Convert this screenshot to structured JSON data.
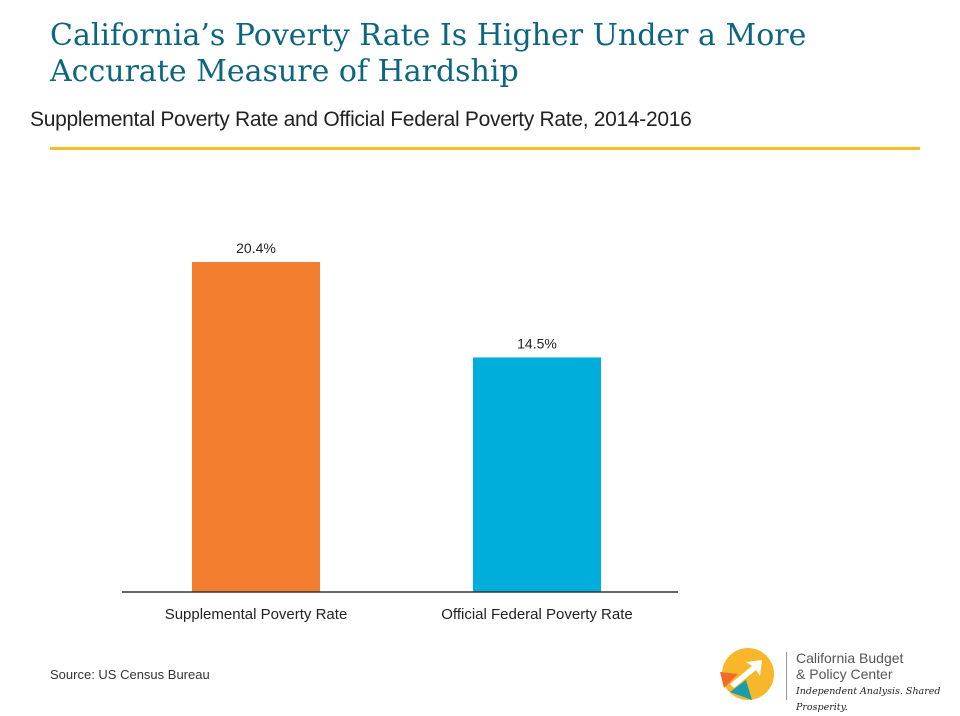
{
  "title": "California’s Poverty Rate Is Higher Under a More Accurate Measure of Hardship",
  "subtitle": "Supplemental Poverty Rate and Official Federal Poverty Rate, 2014-2016",
  "source": "Source: US Census Bureau",
  "logo": {
    "line1": "California Budget",
    "line2": "& Policy Center",
    "tagline": "Independent Analysis. Shared Prosperity."
  },
  "colors": {
    "title": "#0e6580",
    "rule": "#f8bb2b",
    "supplemental": "#f47e30",
    "official": "#00aedb"
  },
  "chart_data": {
    "type": "bar",
    "categories": [
      "Supplemental Poverty Rate",
      "Official Federal Poverty Rate"
    ],
    "values": [
      20.4,
      14.5
    ],
    "labels": [
      "20.4%",
      "14.5%"
    ],
    "colors": [
      "#f47e30",
      "#00aedb"
    ],
    "ylim": [
      0,
      25
    ],
    "grid": false,
    "legend": "none"
  }
}
